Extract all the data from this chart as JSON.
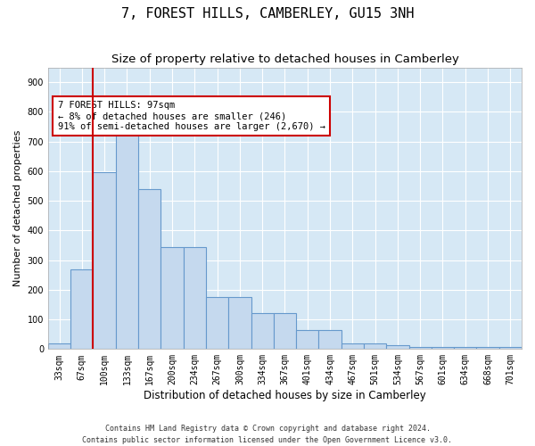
{
  "title": "7, FOREST HILLS, CAMBERLEY, GU15 3NH",
  "subtitle": "Size of property relative to detached houses in Camberley",
  "xlabel": "Distribution of detached houses by size in Camberley",
  "ylabel": "Number of detached properties",
  "categories": [
    "33sqm",
    "67sqm",
    "100sqm",
    "133sqm",
    "167sqm",
    "200sqm",
    "234sqm",
    "267sqm",
    "300sqm",
    "334sqm",
    "367sqm",
    "401sqm",
    "434sqm",
    "467sqm",
    "501sqm",
    "534sqm",
    "567sqm",
    "601sqm",
    "634sqm",
    "668sqm",
    "701sqm"
  ],
  "values": [
    20,
    270,
    597,
    735,
    540,
    343,
    343,
    175,
    175,
    120,
    120,
    65,
    65,
    20,
    20,
    12,
    7,
    7,
    7,
    7,
    7
  ],
  "bar_color": "#c5d9ee",
  "bar_edge_color": "#6699cc",
  "vline_x": 1.5,
  "vline_color": "#cc0000",
  "annotation_text": "7 FOREST HILLS: 97sqm\n← 8% of detached houses are smaller (246)\n91% of semi-detached houses are larger (2,670) →",
  "annotation_box_color": "#ffffff",
  "annotation_box_edge": "#cc0000",
  "ylim": [
    0,
    950
  ],
  "yticks": [
    0,
    100,
    200,
    300,
    400,
    500,
    600,
    700,
    800,
    900
  ],
  "plot_bg_color": "#d6e8f5",
  "grid_color": "#ffffff",
  "fig_bg_color": "#ffffff",
  "footer": "Contains HM Land Registry data © Crown copyright and database right 2024.\nContains public sector information licensed under the Open Government Licence v3.0.",
  "title_fontsize": 11,
  "subtitle_fontsize": 9.5,
  "xlabel_fontsize": 8.5,
  "ylabel_fontsize": 8,
  "tick_fontsize": 7,
  "annotation_fontsize": 7.5,
  "footer_fontsize": 6
}
